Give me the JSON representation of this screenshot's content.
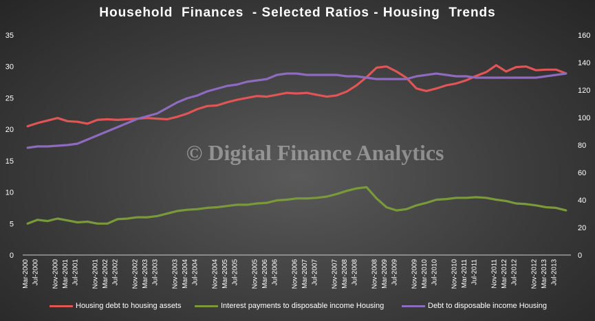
{
  "chart_data": {
    "type": "line",
    "title": "Household  Finances  - Selected Ratios - Housing  Trends",
    "watermark": "© Digital Finance Analytics",
    "xlabel": "",
    "ylabel": "",
    "left_axis": {
      "ylim": [
        0,
        35
      ],
      "ticks": [
        "0",
        "5",
        "10",
        "15",
        "20",
        "25",
        "30",
        "35"
      ]
    },
    "right_axis": {
      "ylim": [
        0,
        160
      ],
      "ticks": [
        "0",
        "20",
        "40",
        "60",
        "80",
        "100",
        "120",
        "140",
        "160"
      ]
    },
    "grid": false,
    "legend_position": "bottom",
    "x_tick_labels": [
      "Mar-2000",
      "Jul-2000",
      "Nov-2000",
      "Mar-2001",
      "Jul-2001",
      "Nov-2001",
      "Mar-2002",
      "Jul-2002",
      "Nov-2002",
      "Mar-2003",
      "Jul-2003",
      "Nov-2003",
      "Mar-2004",
      "Jul-2004",
      "Nov-2004",
      "Mar-2005",
      "Jul-2005",
      "Nov-2005",
      "Mar-2006",
      "Jul-2006",
      "Nov-2006",
      "Mar-2007",
      "Jul-2007",
      "Nov-2007",
      "Mar-2008",
      "Jul-2008",
      "Nov-2008",
      "Mar-2009",
      "Jul-2009",
      "Nov-2009",
      "Mar-2010",
      "Jul-2010",
      "Nov-2010",
      "Mar-2011",
      "Jul-2011",
      "Nov-2011",
      "Mar-2012",
      "Jul-2012",
      "Nov-2012",
      "Mar-2013",
      "Jul-2013"
    ],
    "x": [
      "Mar-2000",
      "Jun-2000",
      "Sep-2000",
      "Dec-2000",
      "Mar-2001",
      "Jun-2001",
      "Sep-2001",
      "Dec-2001",
      "Mar-2002",
      "Jun-2002",
      "Sep-2002",
      "Dec-2002",
      "Mar-2003",
      "Jun-2003",
      "Sep-2003",
      "Dec-2003",
      "Mar-2004",
      "Jun-2004",
      "Sep-2004",
      "Dec-2004",
      "Mar-2005",
      "Jun-2005",
      "Sep-2005",
      "Dec-2005",
      "Mar-2006",
      "Jun-2006",
      "Sep-2006",
      "Dec-2006",
      "Mar-2007",
      "Jun-2007",
      "Sep-2007",
      "Dec-2007",
      "Mar-2008",
      "Jun-2008",
      "Sep-2008",
      "Dec-2008",
      "Mar-2009",
      "Jun-2009",
      "Sep-2009",
      "Dec-2009",
      "Mar-2010",
      "Jun-2010",
      "Sep-2010",
      "Dec-2010",
      "Mar-2011",
      "Jun-2011",
      "Sep-2011",
      "Dec-2011",
      "Mar-2012",
      "Jun-2012",
      "Sep-2012",
      "Dec-2012",
      "Mar-2013",
      "Jun-2013",
      "Sep-2013"
    ],
    "series": [
      {
        "name": "Housing debt to housing assets",
        "axis": "left",
        "color": "#e05555",
        "values": [
          20.5,
          21.0,
          21.4,
          21.8,
          21.3,
          21.2,
          20.9,
          21.5,
          21.6,
          21.5,
          21.6,
          21.7,
          21.8,
          21.7,
          21.6,
          22.0,
          22.5,
          23.2,
          23.7,
          23.8,
          24.3,
          24.7,
          25.0,
          25.3,
          25.2,
          25.5,
          25.8,
          25.7,
          25.8,
          25.5,
          25.2,
          25.4,
          26.0,
          27.0,
          28.3,
          29.8,
          30.0,
          29.2,
          28.2,
          26.5,
          26.1,
          26.5,
          27.0,
          27.3,
          27.8,
          28.5,
          29.1,
          30.2,
          29.2,
          29.9,
          30.0,
          29.4,
          29.5,
          29.5,
          28.9
        ]
      },
      {
        "name": "Interest payments to disposable income Housing",
        "axis": "left",
        "color": "#7a9a3a",
        "values": [
          5.0,
          5.6,
          5.4,
          5.8,
          5.5,
          5.2,
          5.3,
          5.0,
          5.0,
          5.7,
          5.8,
          6.0,
          6.0,
          6.2,
          6.6,
          7.0,
          7.2,
          7.3,
          7.5,
          7.6,
          7.8,
          8.0,
          8.0,
          8.2,
          8.3,
          8.7,
          8.8,
          9.0,
          9.0,
          9.1,
          9.3,
          9.7,
          10.2,
          10.6,
          10.8,
          9.0,
          7.6,
          7.1,
          7.3,
          7.9,
          8.3,
          8.8,
          8.9,
          9.1,
          9.1,
          9.2,
          9.1,
          8.8,
          8.6,
          8.2,
          8.1,
          7.9,
          7.6,
          7.5,
          7.1
        ]
      },
      {
        "name": "Debt to disposable income Housing",
        "axis": "right",
        "color": "#8e6bbf",
        "values": [
          78,
          79,
          79,
          79.5,
          80,
          81,
          84,
          87,
          90,
          93,
          96,
          99,
          101,
          103,
          107,
          111,
          114,
          116,
          119,
          121,
          123,
          124,
          126,
          127,
          128,
          131,
          132,
          132,
          131,
          131,
          131,
          131,
          130,
          130,
          129,
          128,
          128,
          128,
          128,
          130,
          131,
          132,
          131,
          130,
          130,
          129,
          129,
          129,
          129,
          129,
          129,
          129,
          130,
          131,
          132
        ]
      }
    ]
  }
}
